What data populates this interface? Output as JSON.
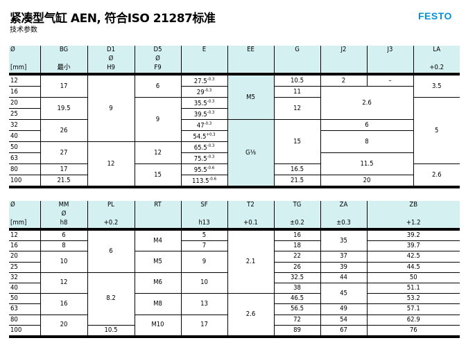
{
  "header": {
    "title": "紧凑型气缸 AEN, 符合ISO 21287标准",
    "subtitle": "技术参数",
    "logo": "FESTO",
    "brand_color": "#0091dc",
    "header_fill": "#d4f0f0"
  },
  "table1": {
    "headers": [
      [
        "Ø",
        "",
        "[mm]"
      ],
      [
        "BG",
        "",
        "最小"
      ],
      [
        "D1",
        "Ø",
        "H9"
      ],
      [
        "D5",
        "Ø",
        "F9"
      ],
      [
        "E",
        "",
        ""
      ],
      [
        "EE",
        "",
        ""
      ],
      [
        "G",
        "",
        ""
      ],
      [
        "J2",
        "",
        ""
      ],
      [
        "J3",
        "",
        ""
      ],
      [
        "LA",
        "",
        "+0.2"
      ]
    ],
    "dia": [
      "12",
      "16",
      "20",
      "25",
      "32",
      "40",
      "50",
      "63",
      "80",
      "100"
    ],
    "BG": [
      "17",
      "19.5",
      "26",
      "27",
      "17",
      "21.5"
    ],
    "D1": [
      "9",
      "12"
    ],
    "D5": [
      "6",
      "9",
      "12",
      "15"
    ],
    "E": [
      {
        "v": "27.5",
        "t": "-0.3"
      },
      {
        "v": "29",
        "t": "-0.3"
      },
      {
        "v": "35.5",
        "t": "-0.3"
      },
      {
        "v": "39.5",
        "t": "-0.3"
      },
      {
        "v": "47",
        "t": "-0.3"
      },
      {
        "v": "54.5",
        "t": "+0.3"
      },
      {
        "v": "65.5",
        "t": "-0.3"
      },
      {
        "v": "75.5",
        "t": "-0.3"
      },
      {
        "v": "95.5",
        "t": "-0.6"
      },
      {
        "v": "113.5",
        "t": "-0.6"
      }
    ],
    "EE": [
      "M5",
      "G⅛"
    ],
    "G": [
      "10.5",
      "11",
      "12",
      "15",
      "16.5",
      "21.5"
    ],
    "J2": [
      "2"
    ],
    "J3": [
      "–"
    ],
    "J23": [
      "2.6",
      "6",
      "8",
      "11.5",
      "20"
    ],
    "LA": [
      "3.5",
      "5",
      "2.6"
    ]
  },
  "table2": {
    "headers": [
      [
        "Ø",
        "",
        "[mm]"
      ],
      [
        "MM",
        "Ø",
        "h8"
      ],
      [
        "PL",
        "",
        "+0.2"
      ],
      [
        "RT",
        "",
        ""
      ],
      [
        "SF",
        "",
        "h13"
      ],
      [
        "T2",
        "",
        "+0.1"
      ],
      [
        "TG",
        "",
        "±0.2"
      ],
      [
        "ZA",
        "",
        "±0.3"
      ],
      [
        "ZB",
        "",
        "+1.2"
      ]
    ],
    "dia": [
      "12",
      "16",
      "20",
      "25",
      "32",
      "40",
      "50",
      "63",
      "80",
      "100"
    ],
    "MM": [
      "6",
      "8",
      "10",
      "12",
      "16",
      "20"
    ],
    "PL": [
      "6",
      "8.2",
      "10.5"
    ],
    "RT": [
      "M4",
      "M5",
      "M6",
      "M8",
      "M10"
    ],
    "SF": [
      "5",
      "7",
      "9",
      "10",
      "13",
      "17"
    ],
    "T2": [
      "2.1",
      "2.6"
    ],
    "TG": [
      "16",
      "18",
      "22",
      "26",
      "32.5",
      "38",
      "46.5",
      "56.5",
      "72",
      "89"
    ],
    "ZA": [
      "35",
      "37",
      "39",
      "44",
      "45",
      "49",
      "54",
      "67"
    ],
    "ZB": [
      "39.2",
      "39.7",
      "42.5",
      "44.5",
      "50",
      "51.1",
      "53.2",
      "57.1",
      "62.9",
      "76"
    ]
  }
}
